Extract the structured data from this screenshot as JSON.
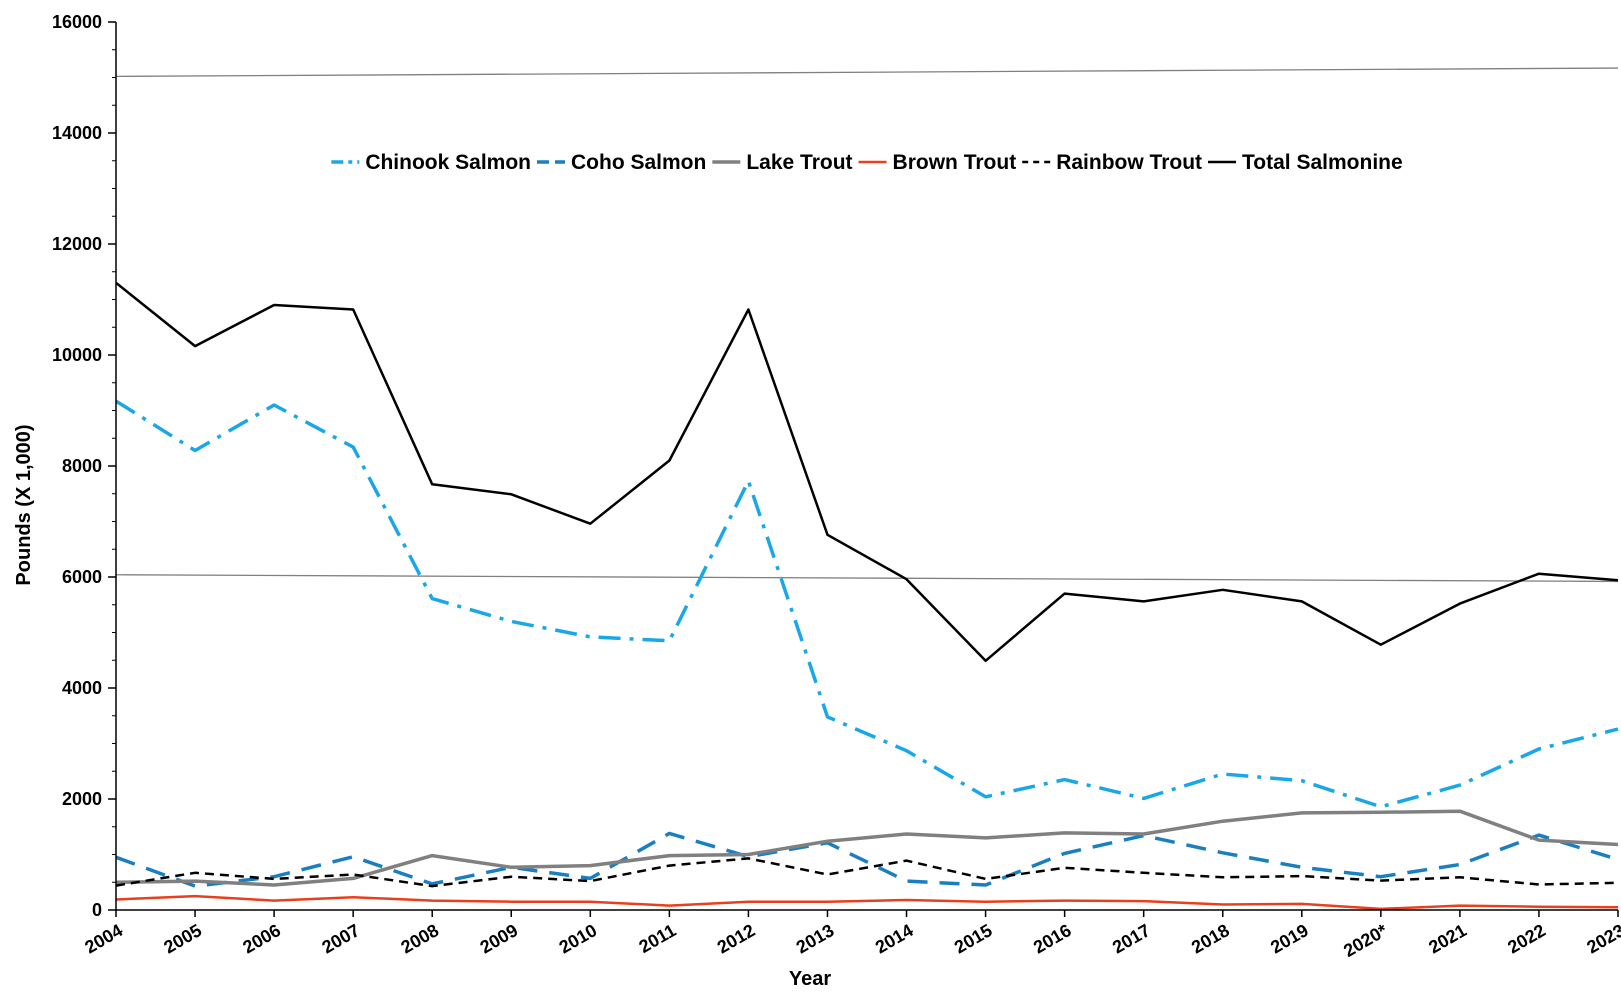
{
  "chart_data": {
    "type": "line",
    "xlabel": "Year",
    "ylabel": "Pounds (X 1,000)",
    "ylim": [
      0,
      16000
    ],
    "yticks": [
      0,
      2000,
      4000,
      6000,
      8000,
      10000,
      12000,
      14000,
      16000
    ],
    "categories": [
      "2004",
      "2005",
      "2006",
      "2007",
      "2008",
      "2009",
      "2010",
      "2011",
      "2012",
      "2013",
      "2014",
      "2015",
      "2016",
      "2017",
      "2018",
      "2019",
      "2020*",
      "2021",
      "2022",
      "2023"
    ],
    "legend_position": "top",
    "series": [
      {
        "name": "Chinook Salmon",
        "color": "#1aa7e8",
        "dash": "dash-dot",
        "values": [
          9170,
          8280,
          9100,
          8340,
          5610,
          5200,
          4920,
          4850,
          7730,
          3480,
          2870,
          2040,
          2350,
          2010,
          2450,
          2330,
          1860,
          2250,
          2900,
          3260
        ]
      },
      {
        "name": "Coho Salmon",
        "color": "#1a7fc1",
        "dash": "long-dash",
        "values": [
          950,
          430,
          600,
          960,
          470,
          770,
          570,
          1380,
          960,
          1210,
          520,
          450,
          1020,
          1340,
          1030,
          770,
          600,
          820,
          1350,
          910
        ]
      },
      {
        "name": "Lake Trout",
        "color": "#808080",
        "dash": "solid",
        "values": [
          500,
          520,
          450,
          570,
          980,
          770,
          800,
          980,
          1000,
          1240,
          1370,
          1300,
          1390,
          1370,
          1600,
          1750,
          1760,
          1780,
          1260,
          1180
        ]
      },
      {
        "name": "Brown Trout",
        "color": "#e8401c",
        "dash": "solid",
        "values": [
          190,
          250,
          170,
          230,
          170,
          150,
          150,
          80,
          150,
          150,
          180,
          150,
          170,
          160,
          100,
          110,
          20,
          80,
          60,
          50
        ]
      },
      {
        "name": "Rainbow Trout",
        "color": "#000000",
        "dash": "short-dash",
        "values": [
          440,
          670,
          560,
          640,
          430,
          600,
          520,
          800,
          930,
          640,
          890,
          560,
          760,
          670,
          590,
          610,
          530,
          590,
          460,
          490
        ]
      },
      {
        "name": "Total Salmonine",
        "color": "#000000",
        "dash": "solid",
        "values": [
          11300,
          10160,
          10900,
          10820,
          7670,
          7490,
          6960,
          8100,
          10820,
          6760,
          5960,
          4490,
          5700,
          5560,
          5770,
          5560,
          4780,
          5520,
          6060,
          5940
        ]
      }
    ],
    "reference_lines": [
      {
        "name": "upper-reference-line",
        "color": "#808080",
        "from_value": 15020,
        "to_value": 15170
      },
      {
        "name": "lower-reference-line",
        "color": "#808080",
        "from_value": 6040,
        "to_value": 5920
      }
    ]
  }
}
